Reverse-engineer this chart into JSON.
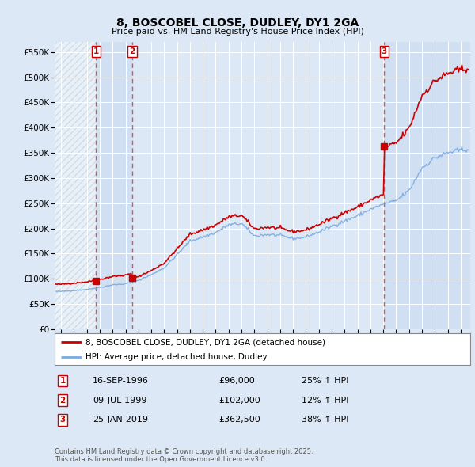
{
  "title": "8, BOSCOBEL CLOSE, DUDLEY, DY1 2GA",
  "subtitle": "Price paid vs. HM Land Registry's House Price Index (HPI)",
  "ytick_values": [
    0,
    50000,
    100000,
    150000,
    200000,
    250000,
    300000,
    350000,
    400000,
    450000,
    500000,
    550000
  ],
  "ylim": [
    0,
    570000
  ],
  "xlim_start": 1993.5,
  "xlim_end": 2025.75,
  "background_color": "#dce8f5",
  "chart_bg_color": "#dce8f5",
  "grid_color": "#ffffff",
  "hpi_color": "#7aaadd",
  "price_color": "#cc0000",
  "marker_color": "#cc0000",
  "sale_dates": [
    1996.712,
    1999.521,
    2019.07
  ],
  "sale_prices": [
    96000,
    102000,
    362500
  ],
  "sale_labels": [
    "1",
    "2",
    "3"
  ],
  "vline_color": "#dd4444",
  "legend_label_price": "8, BOSCOBEL CLOSE, DUDLEY, DY1 2GA (detached house)",
  "legend_label_hpi": "HPI: Average price, detached house, Dudley",
  "table_rows": [
    {
      "label": "1",
      "date": "16-SEP-1996",
      "price": "£96,000",
      "change": "25% ↑ HPI"
    },
    {
      "label": "2",
      "date": "09-JUL-1999",
      "price": "£102,000",
      "change": "12% ↑ HPI"
    },
    {
      "label": "3",
      "date": "25-JAN-2019",
      "price": "£362,500",
      "change": "38% ↑ HPI"
    }
  ],
  "footer": "Contains HM Land Registry data © Crown copyright and database right 2025.\nThis data is licensed under the Open Government Licence v3.0.",
  "hatch_end": 1996.712,
  "highlight1_end": 1999.521,
  "highlight2_start": 2019.07
}
